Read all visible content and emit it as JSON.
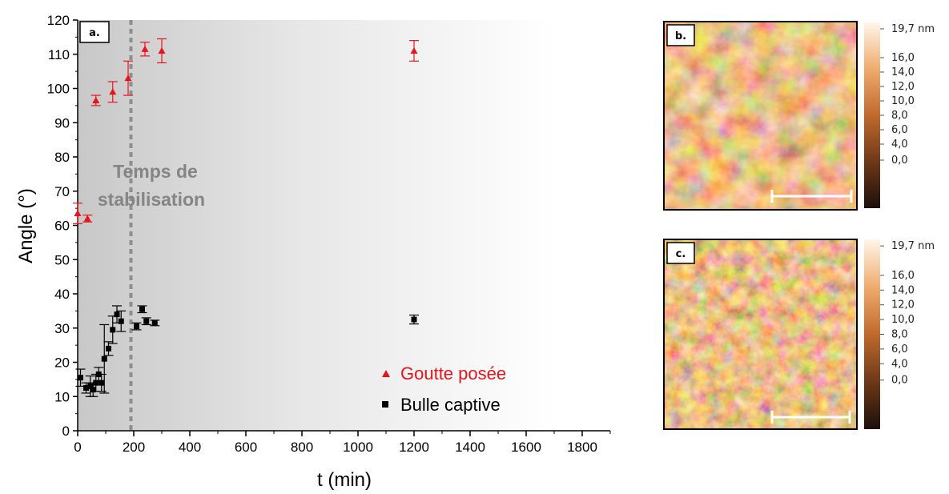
{
  "chart_data": {
    "type": "scatter",
    "panel_label": "a.",
    "xlabel": "t (min)",
    "ylabel": "Angle (°)",
    "xlim": [
      0,
      1900
    ],
    "ylim": [
      0,
      120
    ],
    "xticks": [
      0,
      200,
      400,
      600,
      800,
      1000,
      1200,
      1400,
      1600,
      1800
    ],
    "yticks": [
      0,
      10,
      20,
      30,
      40,
      50,
      60,
      70,
      80,
      90,
      100,
      110,
      120
    ],
    "annotation": [
      "Temps de",
      "stabilisation"
    ],
    "stabilization_time": 190,
    "series": [
      {
        "name": "Goutte posée",
        "marker": "triangle",
        "color": "#e8141b",
        "points": [
          {
            "x": 0,
            "y": 63.5,
            "err": 3
          },
          {
            "x": 35,
            "y": 62,
            "err": 1
          },
          {
            "x": 65,
            "y": 96.5,
            "err": 1.5
          },
          {
            "x": 125,
            "y": 99,
            "err": 3
          },
          {
            "x": 180,
            "y": 103,
            "err": 5
          },
          {
            "x": 240,
            "y": 111.5,
            "err": 2
          },
          {
            "x": 300,
            "y": 111,
            "err": 3.5
          },
          {
            "x": 1200,
            "y": 111,
            "err": 3
          }
        ]
      },
      {
        "name": "Bulle captive",
        "marker": "square",
        "color": "#000000",
        "points": [
          {
            "x": 10,
            "y": 15.5,
            "err": 2.5
          },
          {
            "x": 30,
            "y": 12.5,
            "err": 1.5
          },
          {
            "x": 45,
            "y": 13,
            "err": 3
          },
          {
            "x": 55,
            "y": 12,
            "err": 2
          },
          {
            "x": 65,
            "y": 14,
            "err": 2.5
          },
          {
            "x": 75,
            "y": 16.5,
            "err": 2
          },
          {
            "x": 85,
            "y": 14,
            "err": 2.5
          },
          {
            "x": 95,
            "y": 21,
            "err": 10
          },
          {
            "x": 110,
            "y": 24,
            "err": 2
          },
          {
            "x": 125,
            "y": 29.5,
            "err": 4
          },
          {
            "x": 140,
            "y": 34,
            "err": 2.5
          },
          {
            "x": 155,
            "y": 32,
            "err": 3
          },
          {
            "x": 210,
            "y": 30.5,
            "err": 1
          },
          {
            "x": 230,
            "y": 35.5,
            "err": 1
          },
          {
            "x": 245,
            "y": 32,
            "err": 1
          },
          {
            "x": 275,
            "y": 31.5,
            "err": 0.8
          },
          {
            "x": 1200,
            "y": 32.5,
            "err": 1.3
          }
        ]
      }
    ]
  },
  "afm_panels": [
    {
      "label": "b.",
      "colorbar_labels": [
        "19,7 nm",
        "16,0",
        "14,0",
        "12,0",
        "10,0",
        "8,0",
        "6,0",
        "4,0",
        "0,0"
      ]
    },
    {
      "label": "c.",
      "colorbar_labels": [
        "19,7 nm",
        "16,0",
        "14,0",
        "12,0",
        "10,0",
        "8,0",
        "6,0",
        "4,0",
        "0,0"
      ]
    }
  ]
}
